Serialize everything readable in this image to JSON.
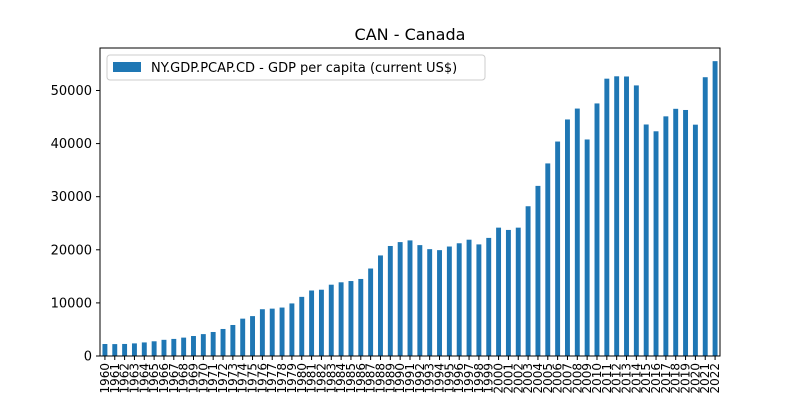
{
  "chart_data": {
    "type": "bar",
    "title": "CAN - Canada",
    "xlabel": "",
    "ylabel": "",
    "ylim": [
      0,
      58000
    ],
    "yticks": [
      0,
      10000,
      20000,
      30000,
      40000,
      50000
    ],
    "legend_position": "upper-left",
    "grid": false,
    "colors": {
      "bar": "#1f77b4",
      "axis": "#000000",
      "legend_border": "#cccccc"
    },
    "categories": [
      "1960",
      "1961",
      "1962",
      "1963",
      "1964",
      "1965",
      "1966",
      "1967",
      "1968",
      "1969",
      "1970",
      "1971",
      "1972",
      "1973",
      "1974",
      "1975",
      "1976",
      "1977",
      "1978",
      "1979",
      "1980",
      "1981",
      "1982",
      "1983",
      "1984",
      "1985",
      "1986",
      "1987",
      "1988",
      "1989",
      "1990",
      "1991",
      "1992",
      "1993",
      "1994",
      "1995",
      "1996",
      "1997",
      "1998",
      "1999",
      "2000",
      "2001",
      "2002",
      "2003",
      "2004",
      "2005",
      "2006",
      "2007",
      "2008",
      "2009",
      "2010",
      "2011",
      "2012",
      "2013",
      "2014",
      "2015",
      "2016",
      "2017",
      "2018",
      "2019",
      "2020",
      "2021",
      "2022"
    ],
    "series": [
      {
        "name": "NY.GDP.PCAP.CD - GDP per capita (current US$)",
        "values": [
          2259,
          2241,
          2267,
          2374,
          2556,
          2770,
          3047,
          3217,
          3463,
          3764,
          4122,
          4521,
          5090,
          5839,
          7033,
          7511,
          8809,
          8919,
          9124,
          9899,
          11135,
          12337,
          12482,
          13426,
          13878,
          14115,
          14507,
          16473,
          18937,
          20716,
          21448,
          21768,
          20880,
          20121,
          19935,
          20614,
          21228,
          21901,
          21015,
          22239,
          24171,
          23738,
          24169,
          28201,
          32034,
          36266,
          40386,
          44544,
          46595,
          40773,
          47562,
          52224,
          52670,
          52635,
          50956,
          43596,
          42316,
          45129,
          46549,
          46329,
          43562,
          52497,
          55522
        ]
      }
    ]
  }
}
